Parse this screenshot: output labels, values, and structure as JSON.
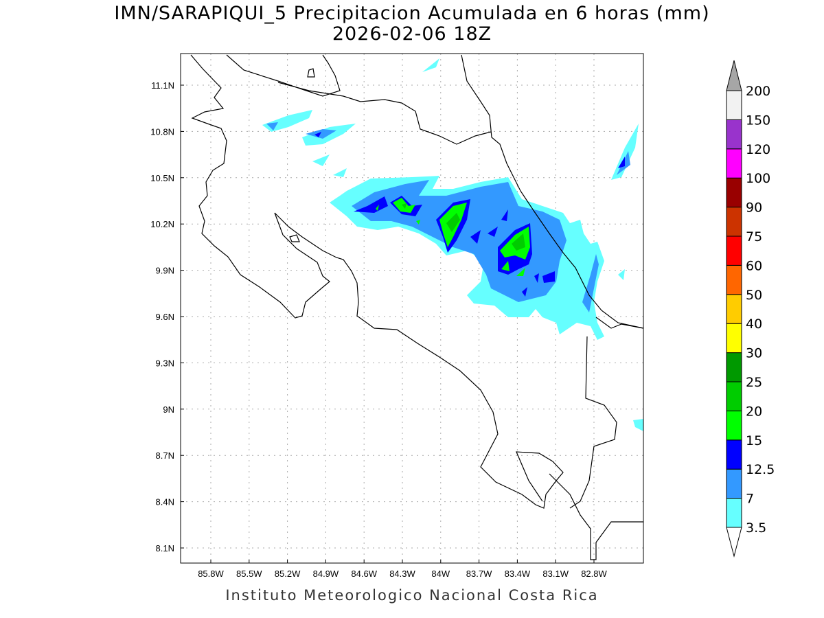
{
  "title": {
    "line1": "IMN/SARAPIQUI_5 Precipitacion Acumulada en 6 horas (mm)",
    "line2": "2026-02-06 18Z"
  },
  "footer": "Instituto Meteorologico Nacional Costa Rica",
  "map": {
    "lon_labels": [
      "85.8W",
      "85.5W",
      "85.2W",
      "84.9W",
      "84.6W",
      "84.3W",
      "84W",
      "83.7W",
      "83.4W",
      "83.1W",
      "82.8W"
    ],
    "lat_labels": [
      "11.1N",
      "10.8N",
      "10.5N",
      "10.2N",
      "9.9N",
      "9.6N",
      "9.3N",
      "9N",
      "8.7N",
      "8.4N",
      "8.1N"
    ]
  },
  "colorbar": {
    "labels": [
      "3.5",
      "7",
      "12.5",
      "15",
      "20",
      "25",
      "30",
      "40",
      "50",
      "60",
      "75",
      "90",
      "100",
      "120",
      "150",
      "200"
    ],
    "colors": [
      "#66ffff",
      "#3399ff",
      "#0000ff",
      "#00ff00",
      "#00cc00",
      "#009900",
      "#ffff00",
      "#ffcc00",
      "#ff6600",
      "#ff0000",
      "#cc3300",
      "#990000",
      "#ff00ff",
      "#9933cc",
      "#f2f2f2"
    ],
    "over_color": "#a6a6a6",
    "under_color": "#ffffff"
  }
}
